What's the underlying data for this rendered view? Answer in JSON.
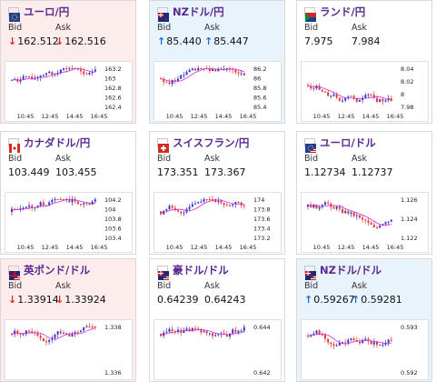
{
  "colors": {
    "up_candle": "#3a34c9",
    "down_candle": "#e63a3a",
    "ma_line": "#c832d8",
    "down_arrow": "#e0271b",
    "up_arrow": "#1f6fd3",
    "card_down_bg": "#fdecec",
    "card_up_bg": "#e8f3fc"
  },
  "labels": {
    "bid": "Bid",
    "ask": "Ask"
  },
  "icons": {
    "down": "↓",
    "up": "↑"
  },
  "cards": [
    {
      "pair": "ユーロ/円",
      "flag": "eu-flag-icon",
      "bid": "162.512",
      "ask": "162.516",
      "trend": "down",
      "x_ticks": [
        "10:45",
        "12:45",
        "14:45",
        "16:45"
      ],
      "y_ticks": [
        "163.2",
        "163",
        "162.8",
        "162.6",
        "162.4"
      ]
    },
    {
      "pair": "NZドル/円",
      "flag": "nz-flag-icon",
      "bid": "85.440",
      "ask": "85.447",
      "trend": "up",
      "x_ticks": [
        "10:45",
        "12:45",
        "14:45",
        "16:45"
      ],
      "y_ticks": [
        "86.2",
        "86",
        "85.8",
        "85.6",
        "85.4"
      ]
    },
    {
      "pair": "ランド/円",
      "flag": "za-flag-icon",
      "bid": "7.975",
      "ask": "7.984",
      "trend": "none",
      "x_ticks": [
        "10:45",
        "12:45",
        "14:45",
        "16:45"
      ],
      "y_ticks": [
        "8.04",
        "8.02",
        "8",
        "7.98"
      ]
    },
    {
      "pair": "カナダドル/円",
      "flag": "ca-flag-icon",
      "bid": "103.449",
      "ask": "103.455",
      "trend": "none",
      "x_ticks": [
        "10:45",
        "12:45",
        "14:45",
        "16:45"
      ],
      "y_ticks": [
        "104.2",
        "104",
        "103.8",
        "103.6",
        "103.4"
      ]
    },
    {
      "pair": "スイスフラン/円",
      "flag": "ch-flag-icon",
      "bid": "173.351",
      "ask": "173.367",
      "trend": "none",
      "x_ticks": [
        "10:45",
        "12:45",
        "14:45",
        "16:45"
      ],
      "y_ticks": [
        "174",
        "173.8",
        "173.6",
        "173.4",
        "173.2"
      ]
    },
    {
      "pair": "ユーロ/ドル",
      "flag": "eu-us-flag-icon",
      "bid": "1.12734",
      "ask": "1.12737",
      "trend": "none",
      "x_ticks": [
        "10:45",
        "12:45",
        "14:45",
        "16:45"
      ],
      "y_ticks": [
        "1.126",
        "1.124",
        "1.122"
      ]
    },
    {
      "pair": "英ポンド/ドル",
      "flag": "gb-us-flag-icon",
      "bid": "1.33914",
      "ask": "1.33924",
      "trend": "down",
      "x_ticks": [],
      "y_ticks": [
        "1.338",
        "1.336"
      ]
    },
    {
      "pair": "豪ドル/ドル",
      "flag": "au-us-flag-icon",
      "bid": "0.64239",
      "ask": "0.64243",
      "trend": "none",
      "x_ticks": [],
      "y_ticks": [
        "0.644",
        "0.642"
      ]
    },
    {
      "pair": "NZドル/ドル",
      "flag": "nz-us-flag-icon",
      "bid": "0.59267",
      "ask": "0.59281",
      "trend": "up",
      "x_ticks": [],
      "y_ticks": [
        "0.593",
        "0.592"
      ]
    }
  ]
}
